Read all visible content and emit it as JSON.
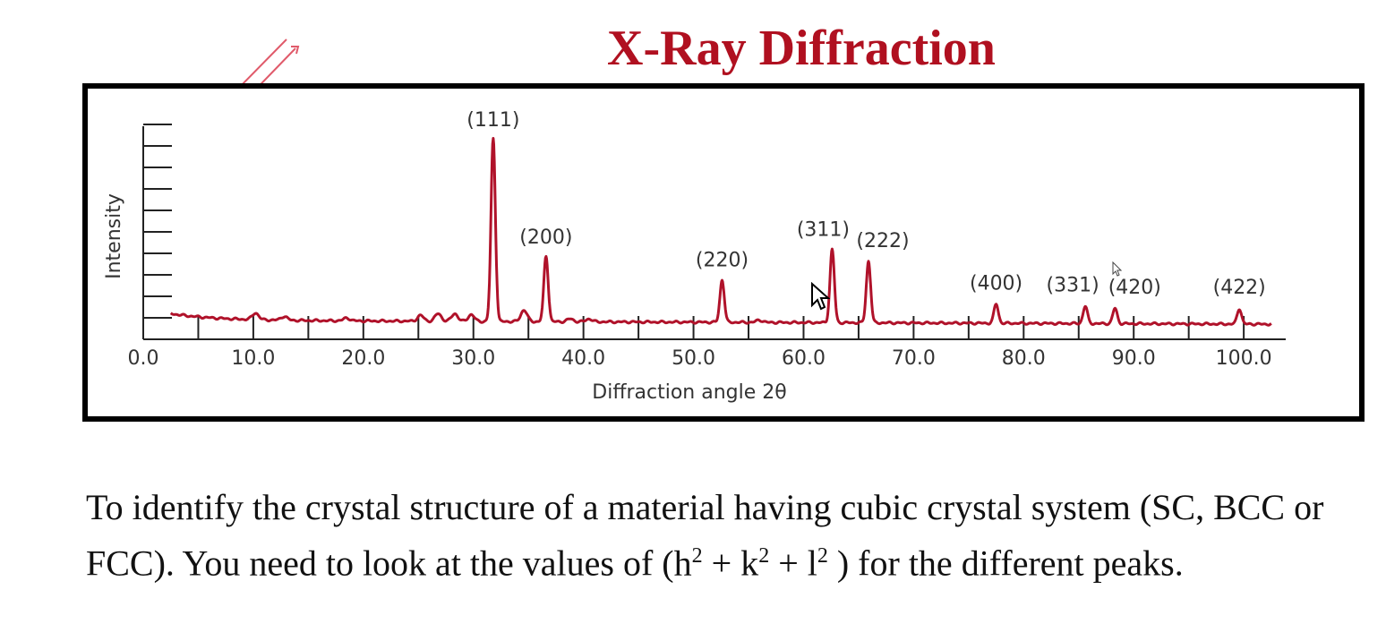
{
  "slide": {
    "title": "X-Ray Diffraction",
    "text": {
      "part1": "To identify the crystal structure of a material having cubic crystal system (SC, BCC or FCC). You need to look at the values of (h",
      "sup1": "2",
      "part2": " + k",
      "sup2": "2",
      "part3": "  + l",
      "sup3": "2",
      "part4": " )   for the different peaks."
    }
  },
  "colors": {
    "title": "#b01020",
    "curve": "#b0122a",
    "annotation": "#e05a6a"
  },
  "chart_data": {
    "type": "line",
    "xlabel": "Diffraction angle 2θ",
    "ylabel": "Intensity",
    "xlim": [
      0,
      105
    ],
    "ylim": [
      0,
      100
    ],
    "x_ticks": [
      "0.0",
      "10.0",
      "20.0",
      "30.0",
      "40.0",
      "50.0",
      "60.0",
      "70.0",
      "80.0",
      "90.0",
      "100.0"
    ],
    "grid": false,
    "peaks": [
      {
        "label": "(111)",
        "two_theta": 31.8,
        "intensity": 95
      },
      {
        "label": "(200)",
        "two_theta": 36.6,
        "intensity": 34
      },
      {
        "label": "(220)",
        "two_theta": 52.6,
        "intensity": 22
      },
      {
        "label": "(311)",
        "two_theta": 62.6,
        "intensity": 38
      },
      {
        "label": "(222)",
        "two_theta": 65.9,
        "intensity": 32
      },
      {
        "label": "(400)",
        "two_theta": 77.5,
        "intensity": 10
      },
      {
        "label": "(331)",
        "two_theta": 85.6,
        "intensity": 9
      },
      {
        "label": "(420)",
        "two_theta": 88.3,
        "intensity": 8
      },
      {
        "label": "(422)",
        "two_theta": 99.6,
        "intensity": 8
      }
    ]
  }
}
